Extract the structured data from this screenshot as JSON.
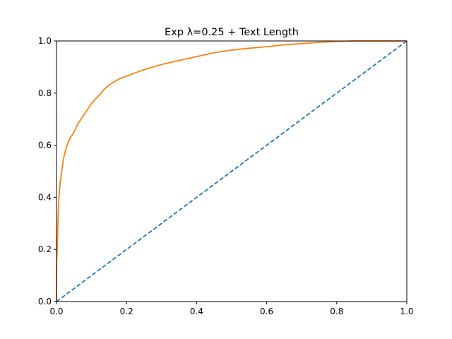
{
  "chart_data": {
    "type": "line",
    "title": "Exp λ=0.25 + Text Length",
    "xlabel": "",
    "ylabel": "",
    "xlim": [
      0,
      1
    ],
    "ylim": [
      0,
      1
    ],
    "grid": false,
    "x_ticks": [
      "0.0",
      "0.2",
      "0.4",
      "0.6",
      "0.8",
      "1.0"
    ],
    "y_ticks": [
      "0.0",
      "0.2",
      "0.4",
      "0.6",
      "0.8",
      "1.0"
    ],
    "series": [
      {
        "color": "#ff7f0e",
        "style": "solid",
        "points": [
          [
            0.0,
            0.0
          ],
          [
            0.0,
            0.13
          ],
          [
            0.002,
            0.2
          ],
          [
            0.004,
            0.3
          ],
          [
            0.007,
            0.4
          ],
          [
            0.01,
            0.45
          ],
          [
            0.015,
            0.5
          ],
          [
            0.02,
            0.55
          ],
          [
            0.03,
            0.6
          ],
          [
            0.04,
            0.63
          ],
          [
            0.05,
            0.65
          ],
          [
            0.06,
            0.68
          ],
          [
            0.08,
            0.72
          ],
          [
            0.1,
            0.76
          ],
          [
            0.12,
            0.79
          ],
          [
            0.14,
            0.82
          ],
          [
            0.16,
            0.84
          ],
          [
            0.18,
            0.855
          ],
          [
            0.2,
            0.865
          ],
          [
            0.25,
            0.89
          ],
          [
            0.3,
            0.91
          ],
          [
            0.35,
            0.925
          ],
          [
            0.4,
            0.94
          ],
          [
            0.45,
            0.955
          ],
          [
            0.5,
            0.965
          ],
          [
            0.55,
            0.972
          ],
          [
            0.6,
            0.978
          ],
          [
            0.65,
            0.985
          ],
          [
            0.7,
            0.99
          ],
          [
            0.75,
            0.995
          ],
          [
            0.8,
            0.998
          ],
          [
            0.85,
            1.0
          ],
          [
            0.9,
            1.0
          ],
          [
            1.0,
            1.0
          ]
        ]
      },
      {
        "color": "#1f77b4",
        "style": "dashed",
        "points": [
          [
            0.0,
            0.0
          ],
          [
            1.0,
            1.0
          ]
        ]
      }
    ]
  }
}
